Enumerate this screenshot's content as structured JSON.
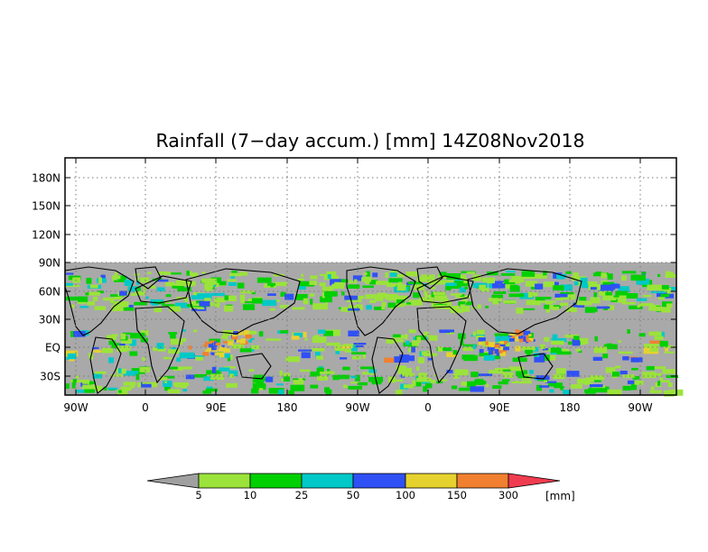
{
  "map": {
    "title": "Rainfall (7−day accum.) [mm] 14Z08Nov2018",
    "lat_labels": [
      "180N",
      "150N",
      "120N",
      "90N",
      "60N",
      "30N",
      "EQ",
      "30S"
    ],
    "lon_labels": [
      "90W",
      "0",
      "90E",
      "180",
      "90W",
      "0",
      "90E",
      "180",
      "90W"
    ],
    "missing_color": "#a9a9a9",
    "land_outline_color": "#000000"
  },
  "colorbar": {
    "unit_label": "[mm]",
    "tick_labels": [
      "5",
      "10",
      "25",
      "50",
      "100",
      "150",
      "300"
    ],
    "low_color": "#a0a0a0",
    "colors": [
      "#9be33a",
      "#00d000",
      "#00c8c8",
      "#2f50f5",
      "#e6d22e",
      "#f08030"
    ],
    "high_color": "#f03c50"
  }
}
